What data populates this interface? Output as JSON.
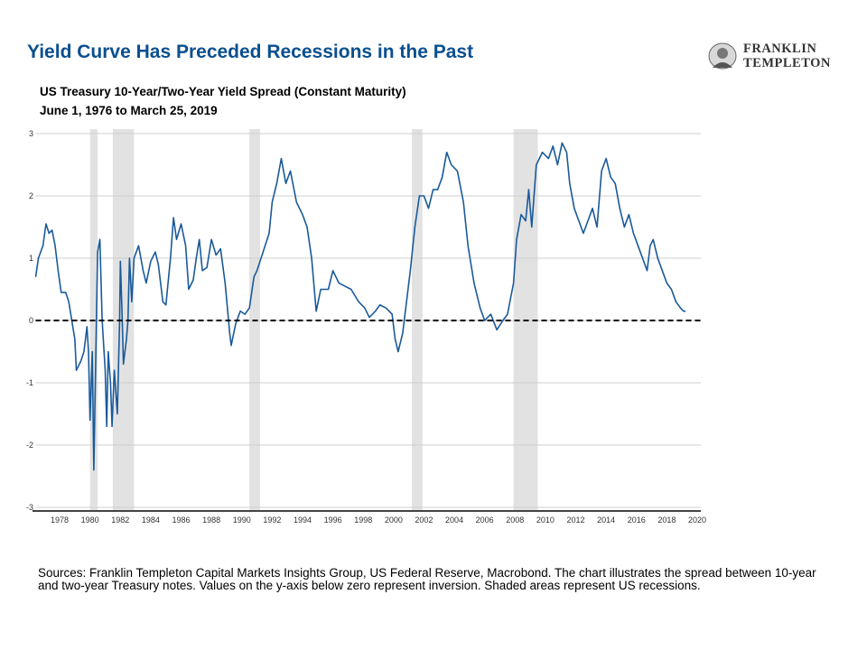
{
  "title": "Yield Curve Has Preceded Recessions in the Past",
  "logo": {
    "line1": "FRANKLIN",
    "line2": "TEMPLETON"
  },
  "chart_data": {
    "type": "line",
    "title": "US Treasury 10-Year/Two-Year Yield Spread (Constant Maturity)",
    "subtitle": "June 1, 1976 to March 25, 2019",
    "xlim": [
      1976.42,
      2020
    ],
    "ylim": [
      -3,
      3
    ],
    "grid": true,
    "y_ticks": [
      "3",
      "2",
      "1",
      "0",
      "-1",
      "-2",
      "-3"
    ],
    "x_ticks": [
      "1978",
      "1980",
      "1982",
      "1984",
      "1986",
      "1988",
      "1990",
      "1992",
      "1994",
      "1996",
      "1998",
      "2000",
      "2002",
      "2004",
      "2006",
      "2008",
      "2010",
      "2012",
      "2014",
      "2016",
      "2018",
      "2020"
    ],
    "reference_line": {
      "y": 0,
      "style": "dashed",
      "color": "#000000"
    },
    "recessions": [
      [
        1980.0,
        1980.5
      ],
      [
        1981.5,
        1982.9
      ],
      [
        1990.5,
        1991.2
      ],
      [
        2001.2,
        2001.9
      ],
      [
        2007.9,
        2009.5
      ]
    ],
    "series_color": "#1a5a9a",
    "recession_color": "#e2e2e2",
    "series": [
      {
        "x": [
          1976.42,
          1976.6,
          1976.9,
          1977.1,
          1977.3,
          1977.5,
          1977.7,
          1977.9,
          1978.1,
          1978.4,
          1978.6,
          1978.8,
          1979.0,
          1979.1,
          1979.4,
          1979.6,
          1979.8,
          1979.9,
          1980.0,
          1980.15,
          1980.25,
          1980.4,
          1980.5,
          1980.65,
          1980.8,
          1981.0,
          1981.1,
          1981.2,
          1981.35,
          1981.45,
          1981.6,
          1981.8,
          1981.95,
          1982.0,
          1982.1,
          1982.2,
          1982.4,
          1982.5,
          1982.6,
          1982.75,
          1982.9,
          1983.2,
          1983.5,
          1983.7,
          1984.0,
          1984.3,
          1984.5,
          1984.8,
          1985.0,
          1985.3,
          1985.5,
          1985.7,
          1986.0,
          1986.3,
          1986.5,
          1986.8,
          1987.0,
          1987.2,
          1987.4,
          1987.7,
          1988.0,
          1988.3,
          1988.6,
          1988.9,
          1989.2,
          1989.3,
          1989.6,
          1989.9,
          1990.2,
          1990.5,
          1990.8,
          1991.0,
          1991.4,
          1991.8,
          1992.0,
          1992.3,
          1992.6,
          1992.9,
          1993.2,
          1993.6,
          1994.0,
          1994.3,
          1994.6,
          1994.9,
          1995.2,
          1995.7,
          1996.0,
          1996.4,
          1996.8,
          1997.2,
          1997.7,
          1998.1,
          1998.4,
          1998.8,
          1999.1,
          1999.5,
          1999.9,
          2000.1,
          2000.3,
          2000.6,
          2000.9,
          2001.1,
          2001.4,
          2001.7,
          2002.0,
          2002.3,
          2002.6,
          2002.9,
          2003.2,
          2003.5,
          2003.8,
          2004.2,
          2004.6,
          2004.9,
          2005.3,
          2005.7,
          2006.0,
          2006.4,
          2006.8,
          2007.2,
          2007.5,
          2007.9,
          2008.1,
          2008.4,
          2008.7,
          2008.9,
          2009.1,
          2009.4,
          2009.6,
          2009.8,
          2010.2,
          2010.5,
          2010.8,
          2011.1,
          2011.4,
          2011.6,
          2011.9,
          2012.2,
          2012.5,
          2012.8,
          2013.1,
          2013.4,
          2013.7,
          2014.0,
          2014.3,
          2014.6,
          2014.9,
          2015.2,
          2015.5,
          2015.8,
          2016.1,
          2016.4,
          2016.7,
          2016.9,
          2017.1,
          2017.4,
          2017.7,
          2018.0,
          2018.3,
          2018.6,
          2018.9,
          2019.1,
          2019.23
        ],
        "y": [
          0.7,
          1.0,
          1.2,
          1.55,
          1.4,
          1.45,
          1.2,
          0.8,
          0.45,
          0.45,
          0.3,
          0.0,
          -0.3,
          -0.8,
          -0.65,
          -0.5,
          -0.1,
          -0.5,
          -1.6,
          -0.5,
          -2.4,
          -0.3,
          1.1,
          1.3,
          0.0,
          -0.8,
          -1.7,
          -0.5,
          -1.0,
          -1.7,
          -0.8,
          -1.5,
          0.0,
          0.95,
          0.2,
          -0.7,
          -0.3,
          0.0,
          1.0,
          0.3,
          1.0,
          1.2,
          0.8,
          0.6,
          0.95,
          1.1,
          0.9,
          0.3,
          0.25,
          1.0,
          1.65,
          1.3,
          1.55,
          1.2,
          0.5,
          0.65,
          1.0,
          1.3,
          0.8,
          0.85,
          1.3,
          1.05,
          1.15,
          0.6,
          -0.2,
          -0.4,
          -0.05,
          0.15,
          0.1,
          0.2,
          0.7,
          0.8,
          1.1,
          1.4,
          1.9,
          2.2,
          2.6,
          2.2,
          2.4,
          1.9,
          1.7,
          1.5,
          1.0,
          0.15,
          0.5,
          0.5,
          0.8,
          0.6,
          0.55,
          0.5,
          0.3,
          0.2,
          0.05,
          0.15,
          0.25,
          0.2,
          0.1,
          -0.3,
          -0.5,
          -0.2,
          0.4,
          0.8,
          1.5,
          2.0,
          2.0,
          1.8,
          2.1,
          2.1,
          2.3,
          2.7,
          2.5,
          2.4,
          1.9,
          1.2,
          0.6,
          0.2,
          0.0,
          0.1,
          -0.15,
          0.0,
          0.1,
          0.6,
          1.3,
          1.7,
          1.6,
          2.1,
          1.5,
          2.5,
          2.6,
          2.7,
          2.6,
          2.8,
          2.5,
          2.85,
          2.7,
          2.2,
          1.8,
          1.6,
          1.4,
          1.6,
          1.8,
          1.5,
          2.4,
          2.6,
          2.3,
          2.2,
          1.8,
          1.5,
          1.7,
          1.4,
          1.2,
          1.0,
          0.8,
          1.2,
          1.3,
          1.0,
          0.8,
          0.6,
          0.5,
          0.3,
          0.2,
          0.15,
          0.15
        ]
      }
    ]
  },
  "note": "Sources: Franklin Templeton Capital Markets Insights Group, US Federal Reserve, Macrobond. The chart illustrates the spread between 10-year and two-year Treasury notes. Values on the y-axis below zero represent inversion. Shaded areas represent US recessions."
}
